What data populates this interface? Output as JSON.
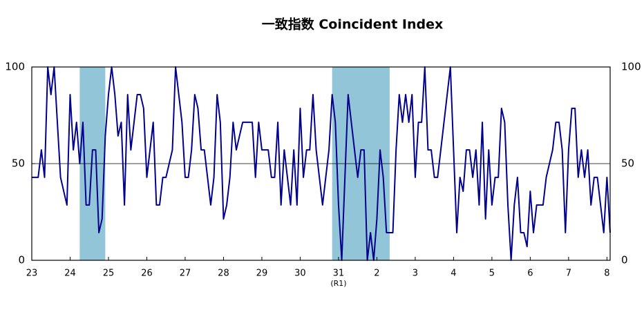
{
  "chart_data": {
    "type": "line",
    "title": "一致指数 Coincident Index",
    "x": [
      0,
      1,
      2,
      3,
      4,
      5,
      6,
      7,
      8,
      9,
      10,
      11,
      12,
      13,
      14,
      15,
      16,
      17,
      18,
      19,
      20,
      21,
      22,
      23,
      24,
      25,
      26,
      27,
      28,
      29,
      30,
      31,
      32,
      33,
      34,
      35,
      36,
      37,
      38,
      39,
      40,
      41,
      42,
      43,
      44,
      45,
      46,
      47,
      48,
      49,
      50,
      51,
      52,
      53,
      54,
      55,
      56,
      57,
      58,
      59,
      60,
      61,
      62,
      63,
      64,
      65,
      66,
      67,
      68,
      69,
      70,
      71,
      72,
      73,
      74,
      75,
      76,
      77,
      78,
      79,
      80,
      81,
      82,
      83,
      84,
      85,
      86,
      87,
      88,
      89,
      90,
      91,
      92,
      93,
      94,
      95,
      96,
      97,
      98,
      99,
      100,
      101,
      102,
      103,
      104,
      105,
      106,
      107,
      108,
      109,
      110,
      111,
      112,
      113,
      114,
      115,
      116,
      117,
      118,
      119,
      120,
      121,
      122,
      123,
      124,
      125,
      126,
      127,
      128,
      129,
      130,
      131,
      132,
      133,
      134,
      135,
      136,
      137,
      138,
      139,
      140,
      141,
      142,
      143,
      144,
      145,
      146,
      147,
      148,
      149,
      150,
      151,
      152,
      153,
      154,
      155,
      156,
      157,
      158,
      159,
      160,
      161,
      162,
      163,
      164,
      165,
      166,
      167,
      168,
      169,
      170,
      171,
      172,
      173,
      174,
      175,
      176,
      177,
      178,
      179,
      180,
      181
    ],
    "series": [
      {
        "color": "#00008b",
        "values": [
          42.9,
          42.9,
          42.9,
          57.1,
          42.9,
          100,
          85.7,
          100,
          71.4,
          42.9,
          35.7,
          28.6,
          85.7,
          57.1,
          71.4,
          50,
          71.4,
          28.6,
          28.6,
          57.1,
          57.1,
          14.3,
          21.4,
          64.3,
          85.7,
          100,
          85.7,
          64.3,
          71.4,
          28.6,
          85.7,
          57.1,
          71.4,
          85.7,
          85.7,
          78.6,
          42.9,
          57.1,
          71.4,
          28.6,
          28.6,
          42.9,
          42.9,
          50,
          57.1,
          100,
          85.7,
          71.4,
          42.9,
          42.9,
          57.1,
          85.7,
          78.6,
          57.1,
          57.1,
          42.9,
          28.6,
          42.9,
          85.7,
          71.4,
          21.4,
          28.6,
          42.9,
          71.4,
          57.1,
          64.3,
          71.4,
          71.4,
          71.4,
          71.4,
          42.9,
          71.4,
          57.1,
          57.1,
          57.1,
          42.9,
          42.9,
          71.4,
          28.6,
          57.1,
          42.9,
          28.6,
          57.1,
          28.6,
          78.6,
          42.9,
          57.1,
          57.1,
          85.7,
          57.1,
          42.9,
          28.6,
          42.9,
          57.1,
          85.7,
          71.4,
          28.6,
          0,
          42.9,
          85.7,
          71.4,
          57.1,
          42.9,
          57.1,
          57.1,
          0,
          14.3,
          0,
          21.4,
          57.1,
          42.9,
          14.3,
          14.3,
          14.3,
          57.1,
          85.7,
          71.4,
          85.7,
          71.4,
          85.7,
          42.9,
          71.4,
          71.4,
          100,
          57.1,
          57.1,
          42.9,
          42.9,
          57.1,
          71.4,
          85.7,
          100,
          57.1,
          14.3,
          42.9,
          35.7,
          57.1,
          57.1,
          42.9,
          57.1,
          28.6,
          71.4,
          21.4,
          57.1,
          28.6,
          42.9,
          42.9,
          78.6,
          71.4,
          28.6,
          0,
          28.6,
          42.9,
          14.3,
          14.3,
          7.1,
          35.7,
          14.3,
          28.6,
          28.6,
          28.6,
          42.9,
          50,
          57.1,
          71.4,
          71.4,
          57.1,
          14.3,
          57.1,
          78.6,
          78.6,
          42.9,
          57.1,
          42.9,
          57.1,
          28.6,
          42.9,
          42.9,
          28.6,
          14.3,
          42.9,
          14.3
        ]
      }
    ],
    "recessions": [
      [
        15,
        23
      ],
      [
        94,
        112
      ]
    ],
    "recession_color": "#92c5d8",
    "xlim": [
      0,
      181
    ],
    "xticks": [
      {
        "value": 0,
        "label": "23"
      },
      {
        "value": 12,
        "label": "24"
      },
      {
        "value": 24,
        "label": "25"
      },
      {
        "value": 36,
        "label": "26"
      },
      {
        "value": 48,
        "label": "27"
      },
      {
        "value": 60,
        "label": "28"
      },
      {
        "value": 72,
        "label": "29"
      },
      {
        "value": 84,
        "label": "30"
      },
      {
        "value": 96,
        "label": "31"
      },
      {
        "value": 108,
        "label": "2"
      },
      {
        "value": 120,
        "label": "3"
      },
      {
        "value": 132,
        "label": "4"
      },
      {
        "value": 144,
        "label": "5"
      },
      {
        "value": 156,
        "label": "6"
      },
      {
        "value": 168,
        "label": "7"
      },
      {
        "value": 180,
        "label": "8"
      }
    ],
    "x_annotation": {
      "value": 96,
      "label": "(R1)"
    },
    "ylim": [
      0,
      100
    ],
    "yticks": [
      0,
      50,
      100
    ],
    "grid": true
  }
}
